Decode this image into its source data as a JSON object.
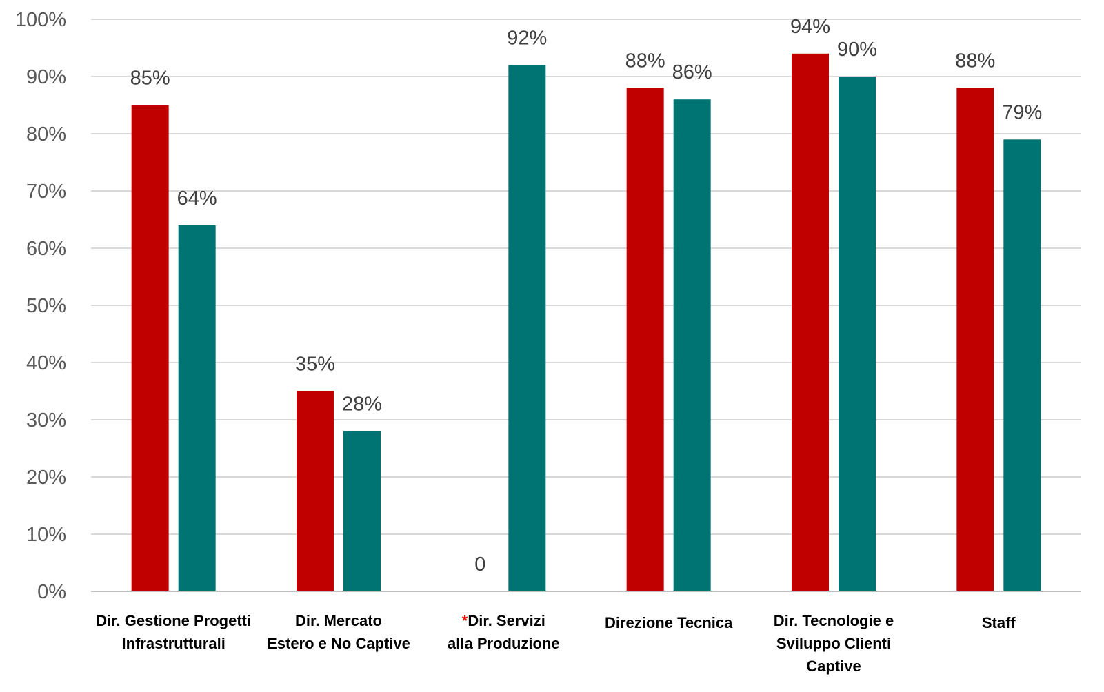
{
  "colors": {
    "series_1": "#c00000",
    "series_2": "#007473",
    "asterisk": "#ff0000"
  },
  "chart_data": {
    "type": "bar",
    "title": "",
    "xlabel": "",
    "ylabel": "",
    "ylim": [
      0,
      100
    ],
    "ytick_step": 10,
    "ytick_labels": [
      "0%",
      "10%",
      "20%",
      "30%",
      "40%",
      "50%",
      "60%",
      "70%",
      "80%",
      "90%",
      "100%"
    ],
    "grid": true,
    "legend": "none",
    "categories": [
      {
        "lines": [
          "Dir. Gestione Progetti",
          "Infrastrutturali"
        ],
        "marker": ""
      },
      {
        "lines": [
          "Dir. Mercato",
          "Estero e No Captive"
        ],
        "marker": ""
      },
      {
        "lines": [
          "Dir. Servizi",
          "alla Produzione"
        ],
        "marker": "*"
      },
      {
        "lines": [
          "Direzione Tecnica"
        ],
        "marker": ""
      },
      {
        "lines": [
          "Dir. Tecnologie e",
          "Sviluppo Clienti",
          "Captive"
        ],
        "marker": ""
      },
      {
        "lines": [
          "Staff"
        ],
        "marker": ""
      }
    ],
    "series": [
      {
        "values": [
          85,
          35,
          0,
          88,
          94,
          88
        ],
        "labels": [
          "85%",
          "35%",
          "0",
          "88%",
          "94%",
          "88%"
        ]
      },
      {
        "values": [
          64,
          28,
          92,
          86,
          90,
          79
        ],
        "labels": [
          "64%",
          "28%",
          "92%",
          "86%",
          "90%",
          "79%"
        ]
      }
    ]
  }
}
